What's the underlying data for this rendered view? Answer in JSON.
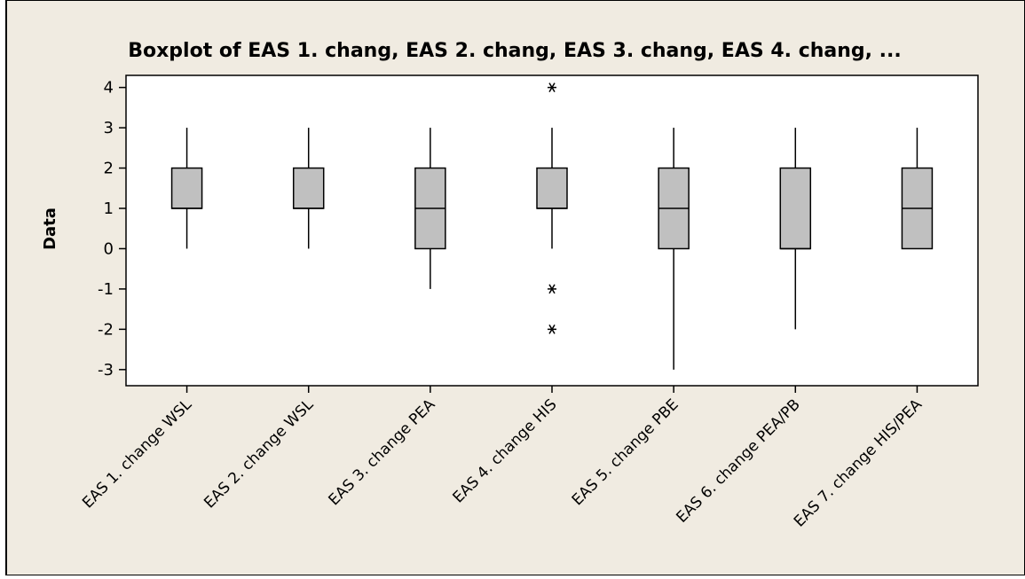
{
  "chart_data": {
    "type": "boxplot",
    "title": "Boxplot of EAS 1. chang, EAS 2. chang, EAS 3. chang, EAS 4. chang, ...",
    "xlabel": "",
    "ylabel": "Data",
    "ylim": [
      -3.4,
      4.3
    ],
    "yticks": [
      -3,
      -2,
      -1,
      0,
      1,
      2,
      3,
      4
    ],
    "grid": false,
    "colors": {
      "background": "#F0EBE1",
      "plot_area": "#FFFFFF",
      "box_fill": "#C0C0C0",
      "line": "#000000"
    },
    "categories": [
      "EAS 1. change WSL",
      "EAS 2. change WSL",
      "EAS 3. change PEA",
      "EAS 4. change HIS",
      "EAS 5. change PBE",
      "EAS 6. change PEA/PB",
      "EAS 7. change HIS/PEA"
    ],
    "boxes": [
      {
        "whisker_low": 0,
        "q1": 1,
        "median": 1,
        "q3": 2,
        "whisker_high": 3,
        "outliers": []
      },
      {
        "whisker_low": 0,
        "q1": 1,
        "median": 1,
        "q3": 2,
        "whisker_high": 3,
        "outliers": []
      },
      {
        "whisker_low": -1,
        "q1": 0,
        "median": 1,
        "q3": 2,
        "whisker_high": 3,
        "outliers": []
      },
      {
        "whisker_low": 0,
        "q1": 1,
        "median": 1,
        "q3": 2,
        "whisker_high": 3,
        "outliers": [
          4,
          -1,
          -2
        ]
      },
      {
        "whisker_low": -3,
        "q1": 0,
        "median": 1,
        "q3": 2,
        "whisker_high": 3,
        "outliers": []
      },
      {
        "whisker_low": -2,
        "q1": 0,
        "median": 0,
        "q3": 2,
        "whisker_high": 3,
        "outliers": []
      },
      {
        "whisker_low": 0,
        "q1": 0,
        "median": 1,
        "q3": 2,
        "whisker_high": 3,
        "outliers": []
      }
    ]
  }
}
